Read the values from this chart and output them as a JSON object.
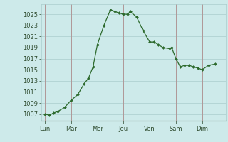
{
  "x_values": [
    0,
    0.33,
    0.67,
    1,
    1.5,
    2,
    2.5,
    3,
    3.33,
    3.67,
    4,
    4.5,
    5,
    5.33,
    5.67,
    6,
    6.33,
    6.5,
    7,
    7.5,
    8,
    8.33,
    8.67,
    9,
    9.5,
    9.67,
    10,
    10.33,
    10.67,
    11,
    11.33,
    11.67,
    12,
    12.5,
    13
  ],
  "y_values": [
    1007,
    1006.8,
    1007.2,
    1007.5,
    1008.2,
    1009.5,
    1010.5,
    1012.5,
    1013.5,
    1015.5,
    1019.5,
    1023,
    1025.8,
    1025.5,
    1025.2,
    1025,
    1025,
    1025.5,
    1024.5,
    1022,
    1020,
    1020,
    1019.5,
    1019,
    1018.8,
    1019,
    1017,
    1015.5,
    1015.8,
    1015.8,
    1015.5,
    1015.3,
    1015,
    1015.8,
    1016
  ],
  "x_tick_positions": [
    0,
    2,
    4,
    6,
    8,
    10,
    12
  ],
  "x_tick_labels": [
    "Lun",
    "Mar",
    "Mer",
    "Jeu",
    "Ven",
    "Sam",
    "Dim"
  ],
  "yticks": [
    1007,
    1009,
    1011,
    1013,
    1015,
    1017,
    1019,
    1021,
    1023,
    1025
  ],
  "ylim": [
    1005.8,
    1026.8
  ],
  "xlim": [
    -0.3,
    13.8
  ],
  "line_color": "#2d6a2d",
  "marker_color": "#2d6a2d",
  "bg_color": "#cdeaea",
  "grid_color": "#aacccc",
  "vline_color": "#b09898",
  "tick_label_color": "#2d4a2d",
  "tick_fontsize": 6.0,
  "figsize": [
    3.2,
    2.0
  ],
  "dpi": 100
}
